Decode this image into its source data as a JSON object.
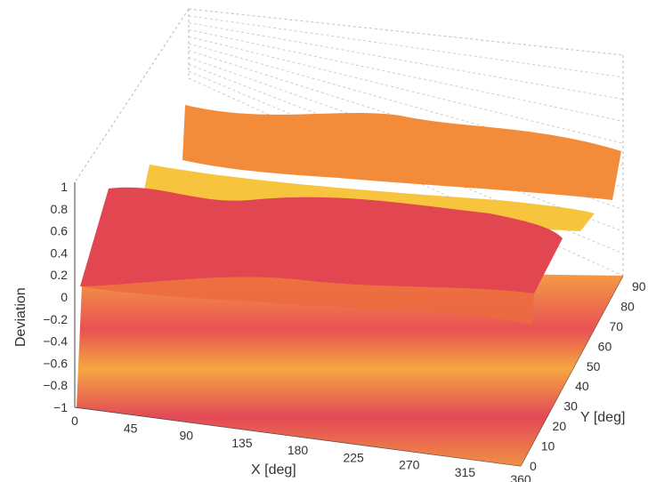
{
  "chart_data": {
    "type": "surface3d",
    "title": "",
    "xlabel": "X [deg]",
    "ylabel": "Y [deg]",
    "zlabel": "Deviation",
    "xlim": [
      0,
      360
    ],
    "ylim": [
      0,
      90
    ],
    "zlim": [
      -1,
      1
    ],
    "x_ticks": [
      "0",
      "45",
      "90",
      "135",
      "180",
      "225",
      "270",
      "315",
      "360"
    ],
    "y_ticks": [
      "0",
      "10",
      "20",
      "30",
      "40",
      "50",
      "60",
      "70",
      "80",
      "90"
    ],
    "z_ticks": [
      "1",
      "0.8",
      "0.6",
      "0.4",
      "0.2",
      "0",
      "-0.2",
      "-0.4",
      "-0.6",
      "-0.8",
      "-1"
    ],
    "grid": true,
    "colormap": [
      "#d42f4e",
      "#ee5a3a",
      "#f5902a",
      "#f9c23a",
      "#fbe25a"
    ],
    "surface_profile": {
      "y": [
        0,
        10,
        20,
        30,
        35,
        40,
        50,
        55,
        60,
        70,
        75,
        80,
        90
      ],
      "deviation": [
        -0.9,
        -0.85,
        -0.8,
        -0.7,
        0.75,
        0.0,
        -0.1,
        0.55,
        0.1,
        0.0,
        0.7,
        0.15,
        0.2
      ]
    },
    "x_ripple_period_deg": 90
  }
}
